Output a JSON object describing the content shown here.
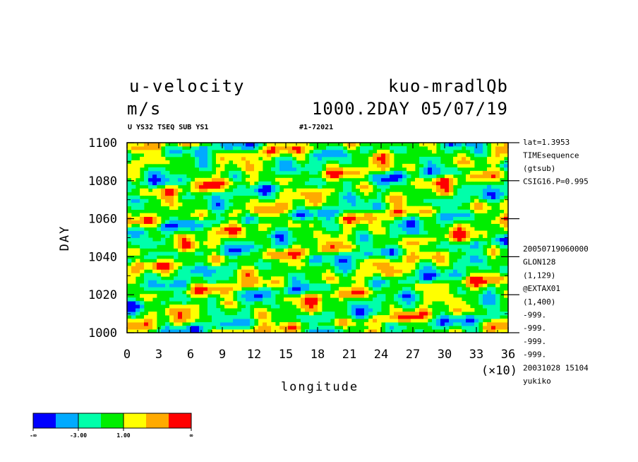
{
  "header": {
    "variable": "u-velocity",
    "experiment": "kuo-mradlQb",
    "units": "m/s",
    "time_info": "1000.2DAY 05/07/19",
    "subtitle_left": "U YS32 TSEQ SUB YS1",
    "subtitle_right": "#1-72021"
  },
  "side_info": {
    "top": [
      "lat=1.3953",
      "TIMEsequence",
      "(gtsub)",
      "CSIG16.P=0.995"
    ],
    "bottom": [
      "20050719060000",
      "GLON128",
      "(1,129)",
      "@EXTAX01",
      "(1,400)",
      "-999.",
      "-999.",
      "-999.",
      "-999.",
      "20031028  15104",
      "yukiko"
    ]
  },
  "chart_data": {
    "type": "heatmap",
    "title": "u-velocity",
    "xlabel": "longitude",
    "x_multiplier": "(×10)",
    "ylabel": "DAY",
    "xlim": [
      0,
      36
    ],
    "ylim": [
      1000,
      1100
    ],
    "x_ticks": [
      "0",
      "3",
      "6",
      "9",
      "12",
      "15",
      "18",
      "21",
      "24",
      "27",
      "30",
      "33",
      "36"
    ],
    "y_ticks": [
      "1000",
      "1020",
      "1040",
      "1060",
      "1080",
      "1100"
    ],
    "color_levels": [
      "#0000ff",
      "#00aaff",
      "#00ffaa",
      "#00ee00",
      "#ffff00",
      "#ffaa00",
      "#ff0000"
    ],
    "colorbar_labels": [
      "-∞",
      "-3.00",
      "1.00",
      "∞"
    ],
    "legend": "bottom-left"
  }
}
